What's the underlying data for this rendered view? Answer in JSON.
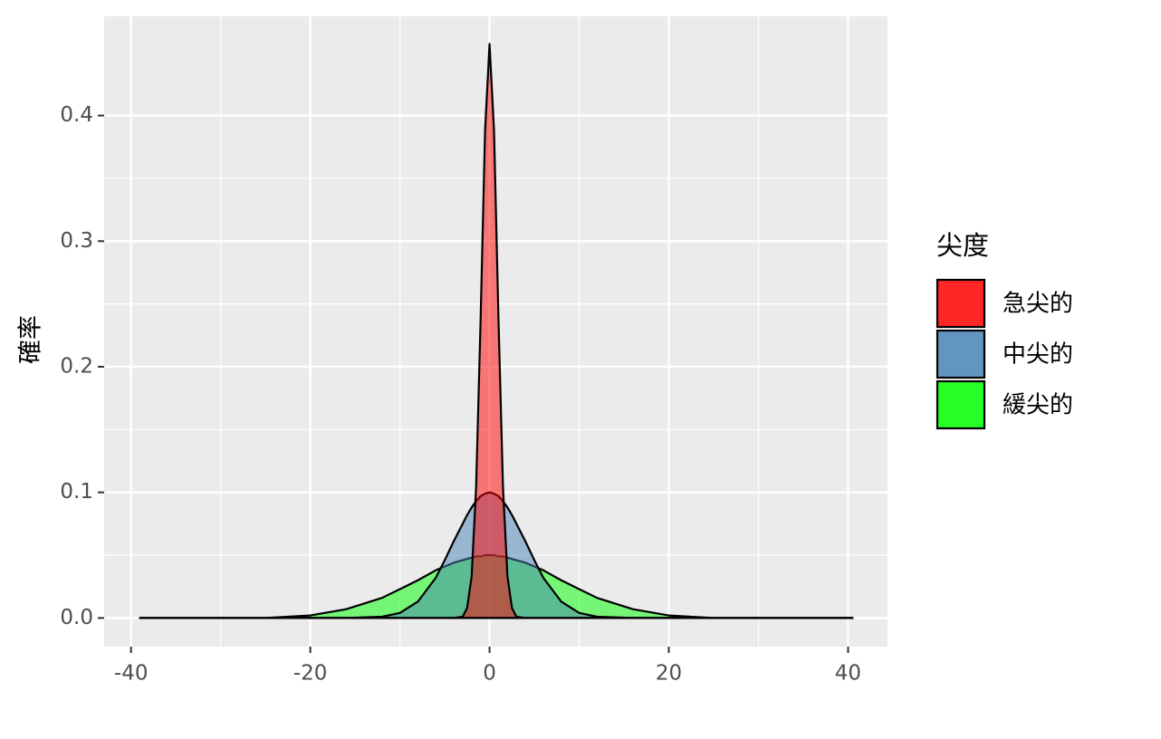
{
  "chart_data": {
    "type": "area",
    "y_label": "確率",
    "legend_title": "尖度",
    "legend_position": "right",
    "grid": true,
    "x": [
      -39,
      -35,
      -30,
      -25,
      -20,
      -16,
      -12,
      -10,
      -8,
      -6,
      -5,
      -4,
      -3,
      -2.5,
      -2,
      -1.5,
      -1,
      -0.5,
      0,
      0.5,
      1,
      1.5,
      2,
      2.5,
      3,
      4,
      5,
      6,
      8,
      10,
      12,
      16,
      20,
      25,
      30,
      35,
      40.5
    ],
    "series": [
      {
        "name": "急尖的",
        "color": "#ff0000",
        "values": [
          0,
          0,
          0,
          0,
          0,
          0,
          0,
          0,
          0,
          0,
          0,
          0,
          0.001,
          0.008,
          0.033,
          0.104,
          0.237,
          0.388,
          0.457,
          0.388,
          0.237,
          0.104,
          0.033,
          0.008,
          0.001,
          0,
          0,
          0,
          0,
          0,
          0,
          0,
          0,
          0,
          0,
          0,
          0
        ]
      },
      {
        "name": "中尖的",
        "color": "#4682b4",
        "values": [
          0,
          0,
          0,
          0,
          0,
          0,
          0.001,
          0.004,
          0.013,
          0.032,
          0.046,
          0.061,
          0.075,
          0.082,
          0.088,
          0.093,
          0.097,
          0.099,
          0.1,
          0.099,
          0.097,
          0.093,
          0.088,
          0.082,
          0.075,
          0.061,
          0.046,
          0.032,
          0.013,
          0.004,
          0.001,
          0,
          0,
          0,
          0,
          0,
          0
        ]
      },
      {
        "name": "緩尖的",
        "color": "#00ff00",
        "values": [
          0,
          0,
          0,
          0,
          0.002,
          0.007,
          0.016,
          0.023,
          0.03,
          0.038,
          0.041,
          0.044,
          0.046,
          0.047,
          0.048,
          0.049,
          0.049,
          0.05,
          0.05,
          0.05,
          0.049,
          0.049,
          0.048,
          0.047,
          0.046,
          0.044,
          0.041,
          0.038,
          0.03,
          0.023,
          0.016,
          0.007,
          0.002,
          0,
          0,
          0,
          0
        ]
      }
    ],
    "xlim": [
      -43,
      44.4
    ],
    "ylim": [
      -0.0228,
      0.479
    ],
    "xticks": [
      -40,
      -20,
      0,
      20,
      40
    ],
    "yticks": [
      {
        "value": 0,
        "label": "0.0"
      },
      0.1,
      0.2,
      0.3,
      0.4
    ]
  }
}
